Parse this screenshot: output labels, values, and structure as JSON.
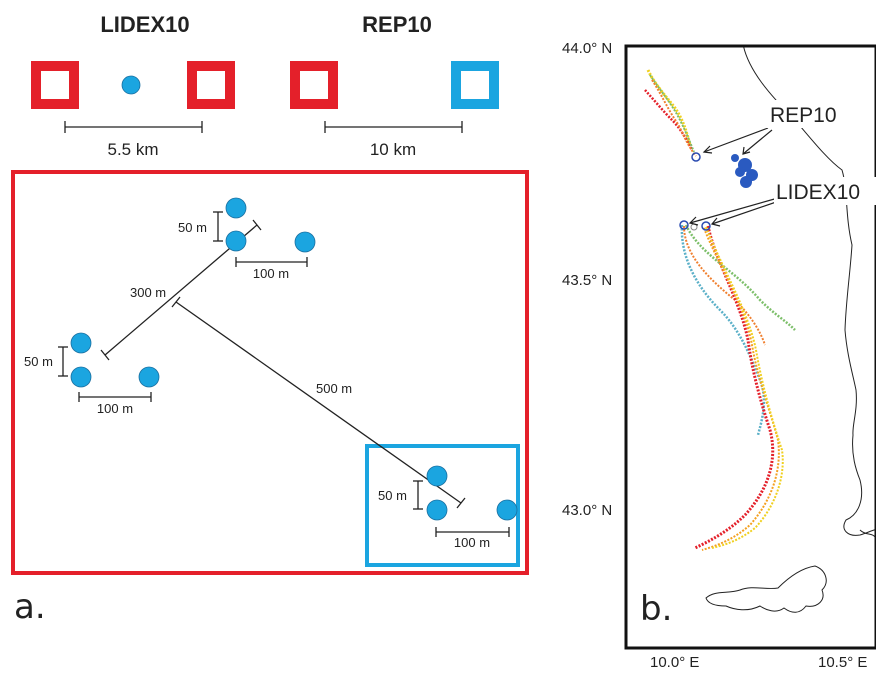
{
  "panel_a": {
    "lidex_title": "LIDEX10",
    "rep_title": "REP10",
    "lidex_scale": "5.5 km",
    "rep_scale": "10 km",
    "d50_top": "50 m",
    "d100_top": "100 m",
    "d300": "300 m",
    "d50_left": "50 m",
    "d100_left": "100 m",
    "d500": "500 m",
    "d50_br": "50 m",
    "d100_br": "100 m",
    "panel_label": "a.",
    "colors": {
      "lidex": "#e4202a",
      "rep": "#1ba5e0",
      "drifter": "#1ba5e0"
    }
  },
  "panel_b": {
    "lat_labels": [
      "44.0° N",
      "43.5° N",
      "43.0° N"
    ],
    "lon_labels": [
      "10.0° E",
      "10.5° E"
    ],
    "rep_label": "REP10",
    "lidex_label": "LIDEX10",
    "panel_label": "b.",
    "track_colors": [
      "#e4202a",
      "#f4a020",
      "#f0d020",
      "#7dbf6a",
      "#5bb0c8",
      "#f08030"
    ]
  }
}
